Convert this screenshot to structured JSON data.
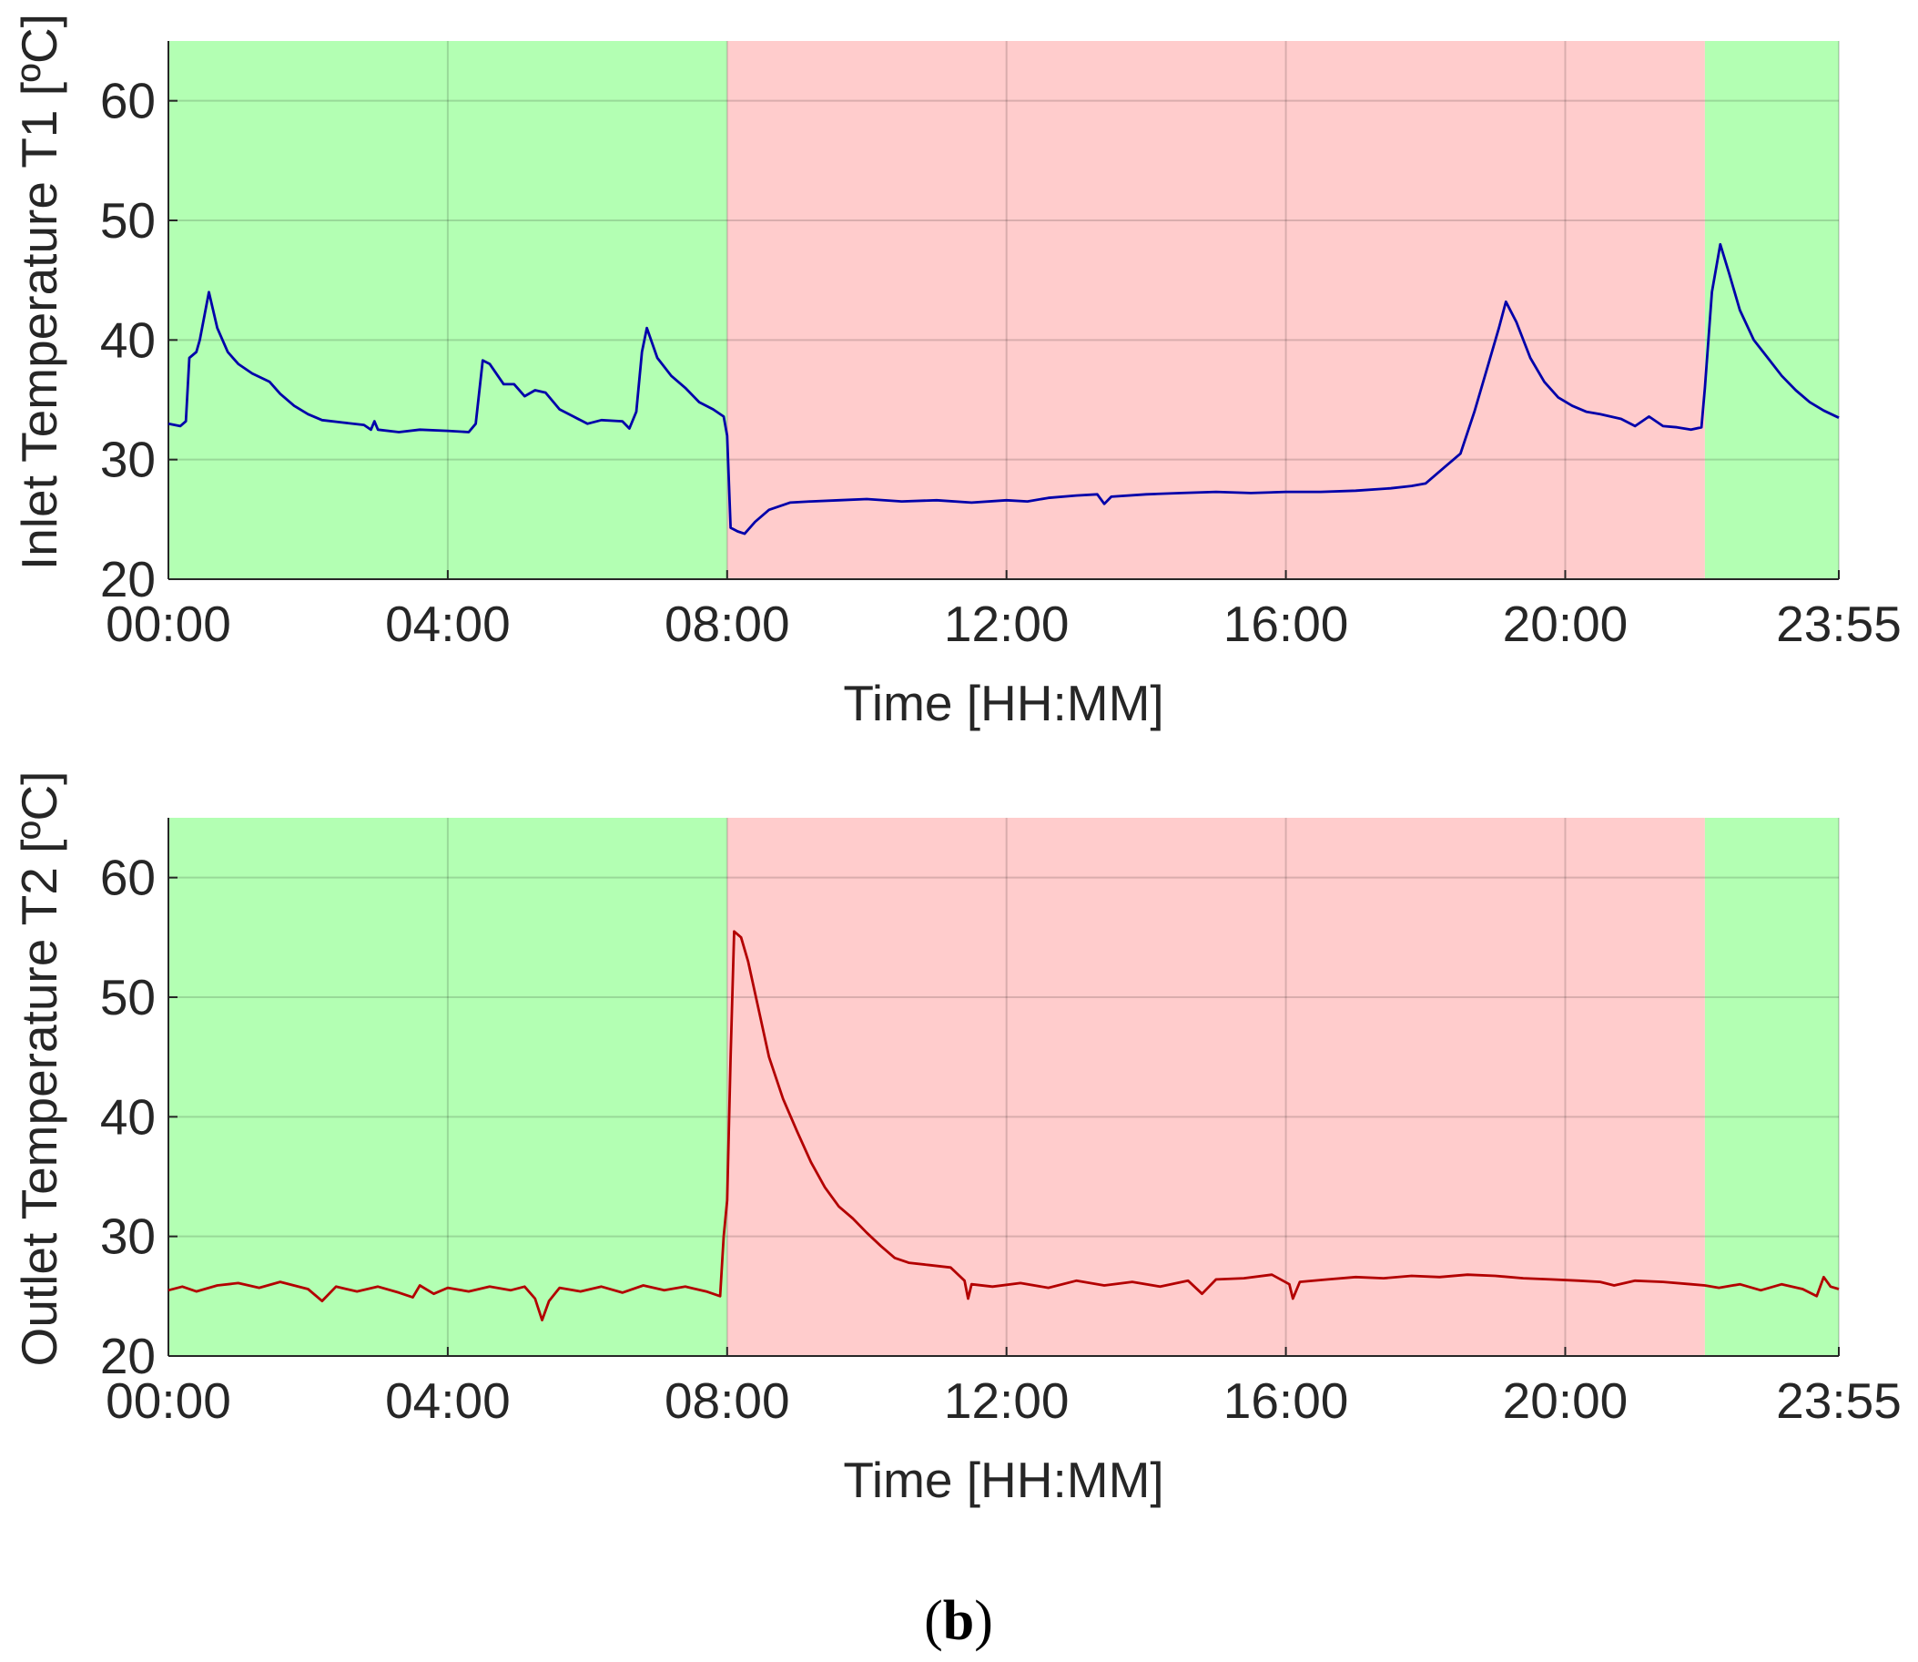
{
  "caption": {
    "open": "(",
    "letter": "b",
    "close": ")"
  },
  "colors": {
    "off_peak_band": "#b3ffb3",
    "peak_band": "#ffcccc",
    "series_t1": "#0000aa",
    "series_t2": "#b30000"
  },
  "chart_data": [
    {
      "type": "line",
      "xlabel": "Time [HH:MM]",
      "ylabel": "Inlet Temperature T1 [ºC]",
      "xlim": [
        0,
        23.917
      ],
      "ylim": [
        20,
        65
      ],
      "grid": true,
      "x_ticks": [
        {
          "value": 0,
          "label": "00:00"
        },
        {
          "value": 4,
          "label": "04:00"
        },
        {
          "value": 8,
          "label": "08:00"
        },
        {
          "value": 12,
          "label": "12:00"
        },
        {
          "value": 16,
          "label": "16:00"
        },
        {
          "value": 20,
          "label": "20:00"
        },
        {
          "value": 23.917,
          "label": "23:55"
        }
      ],
      "y_ticks": [
        {
          "value": 20,
          "label": "20"
        },
        {
          "value": 30,
          "label": "30"
        },
        {
          "value": 40,
          "label": "40"
        },
        {
          "value": 50,
          "label": "50"
        },
        {
          "value": 60,
          "label": "60"
        }
      ],
      "bands": [
        {
          "from": 0,
          "to": 8,
          "kind": "off-peak",
          "color": "#b3ffb3"
        },
        {
          "from": 8,
          "to": 22,
          "kind": "peak",
          "color": "#ffcccc"
        },
        {
          "from": 22,
          "to": 23.917,
          "kind": "off-peak",
          "color": "#b3ffb3"
        }
      ],
      "series": [
        {
          "color": "#0000aa",
          "points": [
            [
              0,
              33
            ],
            [
              0.17,
              32.8
            ],
            [
              0.25,
              33.2
            ],
            [
              0.3,
              38.5
            ],
            [
              0.4,
              39
            ],
            [
              0.45,
              40
            ],
            [
              0.58,
              44
            ],
            [
              0.7,
              41
            ],
            [
              0.85,
              39
            ],
            [
              1,
              38
            ],
            [
              1.2,
              37.2
            ],
            [
              1.45,
              36.5
            ],
            [
              1.6,
              35.5
            ],
            [
              1.8,
              34.5
            ],
            [
              2,
              33.8
            ],
            [
              2.2,
              33.3
            ],
            [
              2.5,
              33.1
            ],
            [
              2.8,
              32.9
            ],
            [
              2.9,
              32.5
            ],
            [
              2.95,
              33.2
            ],
            [
              3,
              32.5
            ],
            [
              3.3,
              32.3
            ],
            [
              3.6,
              32.5
            ],
            [
              4,
              32.4
            ],
            [
              4.3,
              32.3
            ],
            [
              4.4,
              33
            ],
            [
              4.5,
              38.3
            ],
            [
              4.6,
              38
            ],
            [
              4.8,
              36.3
            ],
            [
              4.95,
              36.3
            ],
            [
              5.1,
              35.3
            ],
            [
              5.25,
              35.8
            ],
            [
              5.4,
              35.6
            ],
            [
              5.6,
              34.2
            ],
            [
              5.8,
              33.6
            ],
            [
              6,
              33
            ],
            [
              6.2,
              33.3
            ],
            [
              6.5,
              33.2
            ],
            [
              6.6,
              32.6
            ],
            [
              6.7,
              34
            ],
            [
              6.78,
              39
            ],
            [
              6.85,
              41
            ],
            [
              7,
              38.5
            ],
            [
              7.2,
              37
            ],
            [
              7.4,
              36
            ],
            [
              7.6,
              34.8
            ],
            [
              7.8,
              34.2
            ],
            [
              7.95,
              33.6
            ],
            [
              8,
              32
            ],
            [
              8.05,
              24.3
            ],
            [
              8.15,
              24
            ],
            [
              8.25,
              23.8
            ],
            [
              8.4,
              24.8
            ],
            [
              8.6,
              25.8
            ],
            [
              8.9,
              26.4
            ],
            [
              9.2,
              26.5
            ],
            [
              9.6,
              26.6
            ],
            [
              10,
              26.7
            ],
            [
              10.5,
              26.5
            ],
            [
              11,
              26.6
            ],
            [
              11.5,
              26.4
            ],
            [
              12,
              26.6
            ],
            [
              12.3,
              26.5
            ],
            [
              12.6,
              26.8
            ],
            [
              13,
              27
            ],
            [
              13.3,
              27.1
            ],
            [
              13.4,
              26.3
            ],
            [
              13.5,
              26.9
            ],
            [
              14,
              27.1
            ],
            [
              14.5,
              27.2
            ],
            [
              15,
              27.3
            ],
            [
              15.5,
              27.2
            ],
            [
              16,
              27.3
            ],
            [
              16.5,
              27.3
            ],
            [
              17,
              27.4
            ],
            [
              17.5,
              27.6
            ],
            [
              17.8,
              27.8
            ],
            [
              18,
              28
            ],
            [
              18.3,
              29.5
            ],
            [
              18.5,
              30.5
            ],
            [
              18.7,
              34
            ],
            [
              18.9,
              38
            ],
            [
              19.05,
              41
            ],
            [
              19.15,
              43.2
            ],
            [
              19.3,
              41.5
            ],
            [
              19.5,
              38.5
            ],
            [
              19.7,
              36.5
            ],
            [
              19.9,
              35.2
            ],
            [
              20.1,
              34.5
            ],
            [
              20.3,
              34
            ],
            [
              20.5,
              33.8
            ],
            [
              20.8,
              33.4
            ],
            [
              21,
              32.8
            ],
            [
              21.2,
              33.6
            ],
            [
              21.4,
              32.8
            ],
            [
              21.6,
              32.7
            ],
            [
              21.8,
              32.5
            ],
            [
              21.95,
              32.7
            ],
            [
              22,
              36
            ],
            [
              22.1,
              44
            ],
            [
              22.22,
              48
            ],
            [
              22.35,
              45.5
            ],
            [
              22.5,
              42.5
            ],
            [
              22.7,
              40
            ],
            [
              22.9,
              38.5
            ],
            [
              23.1,
              37
            ],
            [
              23.3,
              35.8
            ],
            [
              23.5,
              34.8
            ],
            [
              23.7,
              34.1
            ],
            [
              23.917,
              33.5
            ]
          ]
        }
      ]
    },
    {
      "type": "line",
      "xlabel": "Time [HH:MM]",
      "ylabel": "Outlet Temperature T2 [ºC]",
      "xlim": [
        0,
        23.917
      ],
      "ylim": [
        20,
        65
      ],
      "grid": true,
      "x_ticks": [
        {
          "value": 0,
          "label": "00:00"
        },
        {
          "value": 4,
          "label": "04:00"
        },
        {
          "value": 8,
          "label": "08:00"
        },
        {
          "value": 12,
          "label": "12:00"
        },
        {
          "value": 16,
          "label": "16:00"
        },
        {
          "value": 20,
          "label": "20:00"
        },
        {
          "value": 23.917,
          "label": "23:55"
        }
      ],
      "y_ticks": [
        {
          "value": 20,
          "label": "20"
        },
        {
          "value": 30,
          "label": "30"
        },
        {
          "value": 40,
          "label": "40"
        },
        {
          "value": 50,
          "label": "50"
        },
        {
          "value": 60,
          "label": "60"
        }
      ],
      "bands": [
        {
          "from": 0,
          "to": 8,
          "kind": "off-peak",
          "color": "#b3ffb3"
        },
        {
          "from": 8,
          "to": 22,
          "kind": "peak",
          "color": "#ffcccc"
        },
        {
          "from": 22,
          "to": 23.917,
          "kind": "off-peak",
          "color": "#b3ffb3"
        }
      ],
      "series": [
        {
          "color": "#b30000",
          "points": [
            [
              0,
              25.5
            ],
            [
              0.2,
              25.8
            ],
            [
              0.4,
              25.4
            ],
            [
              0.7,
              25.9
            ],
            [
              1,
              26.1
            ],
            [
              1.3,
              25.7
            ],
            [
              1.6,
              26.2
            ],
            [
              2,
              25.6
            ],
            [
              2.2,
              24.6
            ],
            [
              2.4,
              25.8
            ],
            [
              2.7,
              25.4
            ],
            [
              3,
              25.8
            ],
            [
              3.3,
              25.3
            ],
            [
              3.5,
              24.9
            ],
            [
              3.6,
              25.9
            ],
            [
              3.8,
              25.2
            ],
            [
              4,
              25.7
            ],
            [
              4.3,
              25.4
            ],
            [
              4.6,
              25.8
            ],
            [
              4.9,
              25.5
            ],
            [
              5.1,
              25.8
            ],
            [
              5.25,
              24.8
            ],
            [
              5.35,
              23
            ],
            [
              5.45,
              24.6
            ],
            [
              5.6,
              25.7
            ],
            [
              5.9,
              25.4
            ],
            [
              6.2,
              25.8
            ],
            [
              6.5,
              25.3
            ],
            [
              6.8,
              25.9
            ],
            [
              7.1,
              25.5
            ],
            [
              7.4,
              25.8
            ],
            [
              7.7,
              25.4
            ],
            [
              7.9,
              25
            ],
            [
              7.95,
              30
            ],
            [
              8,
              33
            ],
            [
              8.05,
              45
            ],
            [
              8.1,
              55.5
            ],
            [
              8.2,
              55
            ],
            [
              8.3,
              53
            ],
            [
              8.45,
              49
            ],
            [
              8.6,
              45
            ],
            [
              8.8,
              41.5
            ],
            [
              9,
              38.8
            ],
            [
              9.2,
              36.2
            ],
            [
              9.4,
              34.1
            ],
            [
              9.6,
              32.5
            ],
            [
              9.8,
              31.5
            ],
            [
              10,
              30.3
            ],
            [
              10.2,
              29.2
            ],
            [
              10.4,
              28.2
            ],
            [
              10.6,
              27.8
            ],
            [
              10.9,
              27.6
            ],
            [
              11.2,
              27.4
            ],
            [
              11.4,
              26.3
            ],
            [
              11.45,
              24.8
            ],
            [
              11.5,
              26
            ],
            [
              11.8,
              25.8
            ],
            [
              12.2,
              26.1
            ],
            [
              12.6,
              25.7
            ],
            [
              13,
              26.3
            ],
            [
              13.4,
              25.9
            ],
            [
              13.8,
              26.2
            ],
            [
              14.2,
              25.8
            ],
            [
              14.6,
              26.3
            ],
            [
              14.8,
              25.2
            ],
            [
              15,
              26.4
            ],
            [
              15.4,
              26.5
            ],
            [
              15.8,
              26.8
            ],
            [
              16.05,
              26
            ],
            [
              16.1,
              24.8
            ],
            [
              16.2,
              26.2
            ],
            [
              16.6,
              26.4
            ],
            [
              17,
              26.6
            ],
            [
              17.4,
              26.5
            ],
            [
              17.8,
              26.7
            ],
            [
              18.2,
              26.6
            ],
            [
              18.6,
              26.8
            ],
            [
              19,
              26.7
            ],
            [
              19.4,
              26.5
            ],
            [
              19.8,
              26.4
            ],
            [
              20.2,
              26.3
            ],
            [
              20.5,
              26.2
            ],
            [
              20.7,
              25.9
            ],
            [
              21,
              26.3
            ],
            [
              21.4,
              26.2
            ],
            [
              21.8,
              26
            ],
            [
              22,
              25.9
            ],
            [
              22.2,
              25.7
            ],
            [
              22.5,
              26
            ],
            [
              22.8,
              25.5
            ],
            [
              23.1,
              26
            ],
            [
              23.4,
              25.6
            ],
            [
              23.6,
              25
            ],
            [
              23.7,
              26.6
            ],
            [
              23.8,
              25.8
            ],
            [
              23.917,
              25.6
            ]
          ]
        }
      ]
    }
  ]
}
